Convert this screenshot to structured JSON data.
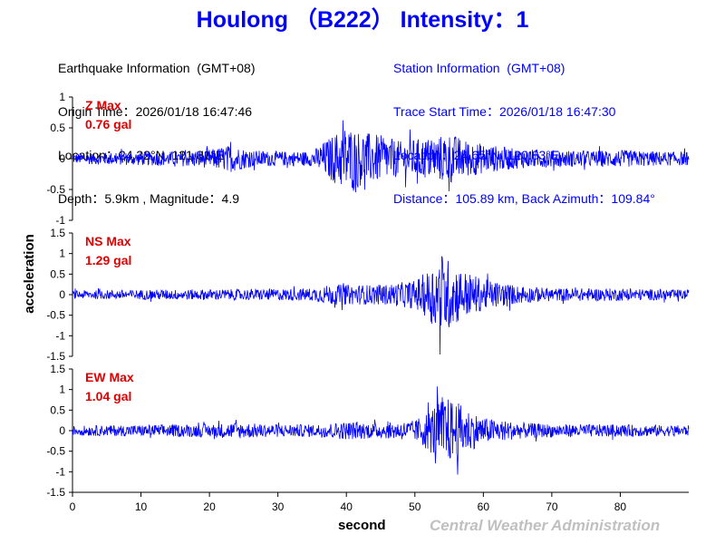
{
  "title": "Houlong （B222） Intensity：1",
  "earthquake_info": [
    "Earthquake Information  (GMT+08)",
    "Origin Time：2026/01/18 16:47:46",
    "Location：24.32°N, 121.81°E",
    "Depth：5.9km , Magnitude：4.9"
  ],
  "station_info": [
    "Station Information  (GMT+08)",
    "Trace Start Time：2026/01/18 16:47:30",
    "Location：24.65°N, 120.83°E",
    "Distance：105.89 km, Back Azimuth：109.84°"
  ],
  "footer": {
    "xlabel": "second",
    "agency": "Central Weather Administration"
  },
  "colors": {
    "title": "#0000ff",
    "trace": "#0000ff",
    "max_label": "#e00000",
    "agency": "#c0c0c0"
  },
  "chart_data": {
    "type": "line",
    "ylabel": "acceleration",
    "xlabel": "second",
    "xlim": [
      0,
      90
    ],
    "xticks": [
      0,
      10,
      20,
      30,
      40,
      50,
      60,
      70,
      80
    ],
    "grid": false,
    "panels": [
      {
        "component": "Z",
        "max_label": "Z Max",
        "max_value": "0.76 gal",
        "ylim": [
          -1,
          1
        ],
        "yticks": [
          -1,
          -0.5,
          0,
          0.5,
          1
        ],
        "envelope": [
          [
            0,
            0.08
          ],
          [
            5,
            0.1
          ],
          [
            10,
            0.11
          ],
          [
            15,
            0.12
          ],
          [
            20,
            0.15
          ],
          [
            23,
            0.22
          ],
          [
            26,
            0.14
          ],
          [
            30,
            0.12
          ],
          [
            35,
            0.12
          ],
          [
            37,
            0.3
          ],
          [
            40,
            0.55
          ],
          [
            42,
            0.45
          ],
          [
            45,
            0.38
          ],
          [
            48,
            0.28
          ],
          [
            50,
            0.32
          ],
          [
            53,
            0.35
          ],
          [
            55,
            0.42
          ],
          [
            57,
            0.32
          ],
          [
            60,
            0.24
          ],
          [
            65,
            0.16
          ],
          [
            70,
            0.14
          ],
          [
            75,
            0.13
          ],
          [
            80,
            0.14
          ],
          [
            85,
            0.12
          ],
          [
            89.5,
            0.11
          ]
        ]
      },
      {
        "component": "NS",
        "max_label": "NS Max",
        "max_value": "1.29 gal",
        "ylim": [
          -1.5,
          1.5
        ],
        "yticks": [
          -1.5,
          -1,
          -0.5,
          0,
          0.5,
          1,
          1.5
        ],
        "envelope": [
          [
            0,
            0.1
          ],
          [
            10,
            0.12
          ],
          [
            20,
            0.13
          ],
          [
            30,
            0.14
          ],
          [
            35,
            0.16
          ],
          [
            38,
            0.25
          ],
          [
            42,
            0.24
          ],
          [
            46,
            0.25
          ],
          [
            50,
            0.35
          ],
          [
            52,
            0.6
          ],
          [
            54,
            1.05
          ],
          [
            55,
            0.85
          ],
          [
            57,
            0.6
          ],
          [
            60,
            0.38
          ],
          [
            65,
            0.22
          ],
          [
            70,
            0.16
          ],
          [
            80,
            0.15
          ],
          [
            89.5,
            0.12
          ]
        ]
      },
      {
        "component": "EW",
        "max_label": "EW Max",
        "max_value": "1.04 gal",
        "ylim": [
          -1.5,
          1.5
        ],
        "yticks": [
          -1.5,
          -1,
          -0.5,
          0,
          0.5,
          1,
          1.5
        ],
        "envelope": [
          [
            0,
            0.12
          ],
          [
            10,
            0.14
          ],
          [
            20,
            0.16
          ],
          [
            24,
            0.2
          ],
          [
            28,
            0.16
          ],
          [
            35,
            0.15
          ],
          [
            40,
            0.22
          ],
          [
            45,
            0.18
          ],
          [
            50,
            0.25
          ],
          [
            52,
            0.5
          ],
          [
            54,
            0.85
          ],
          [
            56,
            0.72
          ],
          [
            58,
            0.5
          ],
          [
            60,
            0.32
          ],
          [
            65,
            0.2
          ],
          [
            70,
            0.16
          ],
          [
            80,
            0.15
          ],
          [
            89.5,
            0.13
          ]
        ]
      }
    ]
  }
}
